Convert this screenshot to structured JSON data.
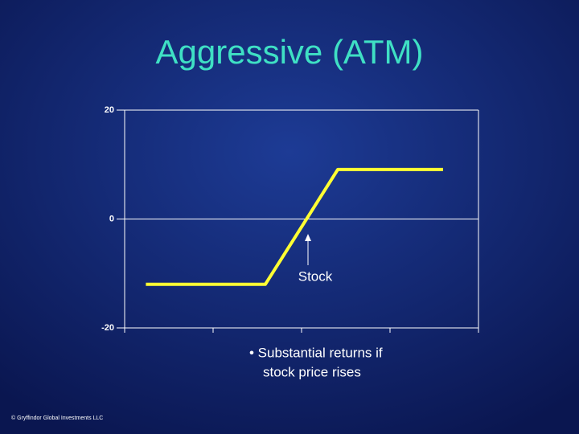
{
  "chart_data": {
    "type": "line",
    "title": "Aggressive (ATM)",
    "x": [
      0.24,
      1.59,
      2.41,
      3.6
    ],
    "values": [
      -12,
      -12,
      9.1,
      9.1
    ],
    "color": "#ffff33",
    "xlim": [
      0,
      4
    ],
    "xticks": [
      0,
      1,
      2,
      3,
      4
    ],
    "ylim": [
      -20,
      20
    ],
    "yticks": [
      -20,
      0,
      20
    ],
    "annotation": "Stock",
    "bullet_lines": [
      "• Substantial returns if",
      "stock price rises"
    ],
    "footer": "© Gryffindor Global Investments LLC"
  }
}
